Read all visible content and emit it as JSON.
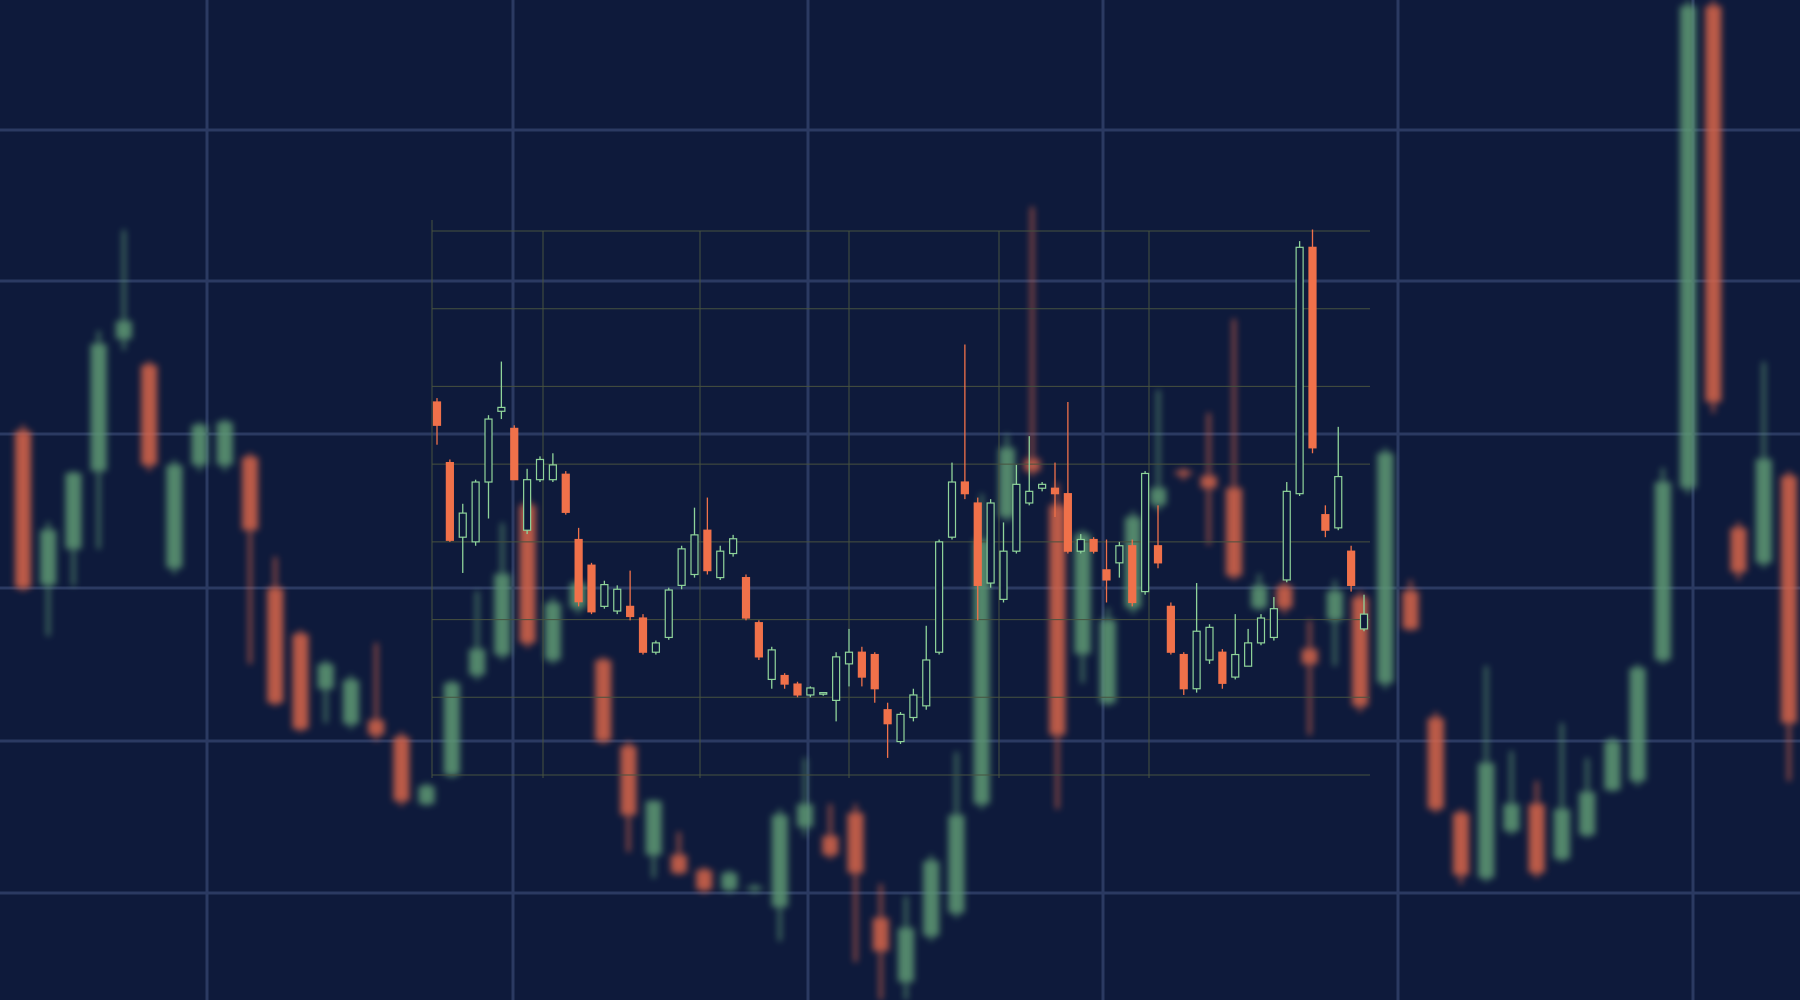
{
  "chart_data": [
    {
      "type": "candlestick",
      "up_color": "#8fd49a",
      "down_color": "#f0714a",
      "ylim": [
        0,
        7.05
      ],
      "yticks": [
        0,
        1,
        2,
        3,
        4,
        5,
        6,
        7
      ],
      "grid": true,
      "open": [
        4.8,
        4.02,
        3.06,
        3.0,
        3.77,
        4.68,
        4.46,
        3.15,
        3.8,
        3.8,
        3.87,
        3.03,
        2.7,
        2.17,
        2.11,
        2.17,
        2.02,
        1.58,
        1.77,
        2.44,
        2.58,
        3.15,
        2.54,
        2.85,
        2.54,
        1.96,
        1.23,
        1.28,
        1.17,
        1.03,
        1.04,
        0.96,
        1.43,
        1.58,
        1.55,
        0.84,
        0.43,
        0.74,
        0.89,
        1.58,
        3.06,
        3.77,
        3.5,
        2.47,
        2.26,
        2.88,
        3.5,
        3.69,
        3.69,
        3.62,
        2.88,
        3.03,
        2.64,
        2.73,
        2.95,
        2.36,
        2.95,
        2.17,
        1.55,
        1.11,
        1.48,
        1.58,
        1.26,
        1.4,
        1.7,
        1.77,
        2.51,
        3.62,
        6.79,
        3.35,
        3.18,
        2.88,
        1.88
      ],
      "high": [
        4.85,
        4.06,
        3.49,
        3.8,
        4.63,
        5.32,
        4.5,
        3.94,
        4.1,
        4.14,
        3.91,
        3.18,
        2.73,
        2.5,
        2.44,
        2.63,
        2.07,
        1.73,
        2.41,
        2.95,
        3.44,
        3.57,
        2.95,
        3.09,
        2.58,
        1.99,
        1.65,
        1.31,
        1.2,
        1.14,
        1.06,
        1.58,
        1.88,
        1.65,
        1.58,
        0.93,
        0.81,
        1.11,
        1.92,
        3.03,
        4.02,
        5.54,
        3.57,
        3.55,
        3.25,
        3.99,
        4.36,
        3.77,
        4.02,
        4.8,
        3.1,
        3.06,
        3.03,
        3.0,
        3.03,
        3.91,
        3.47,
        2.22,
        1.58,
        2.47,
        1.94,
        1.62,
        2.07,
        1.88,
        2.07,
        2.29,
        3.77,
        6.87,
        7.02,
        3.47,
        4.48,
        2.95,
        2.32
      ],
      "low": [
        4.25,
        3.0,
        2.6,
        2.95,
        3.3,
        4.58,
        3.8,
        3.1,
        3.77,
        3.77,
        3.35,
        2.17,
        2.07,
        2.14,
        2.07,
        1.99,
        1.55,
        1.55,
        1.74,
        2.39,
        2.54,
        2.58,
        2.51,
        2.81,
        1.99,
        1.48,
        1.11,
        1.11,
        1.0,
        1.0,
        1.02,
        0.69,
        1.14,
        1.14,
        0.93,
        0.22,
        0.4,
        0.69,
        0.84,
        1.55,
        3.03,
        3.55,
        1.99,
        2.41,
        2.22,
        2.85,
        3.47,
        3.65,
        3.32,
        2.85,
        2.85,
        2.85,
        2.22,
        2.54,
        2.17,
        2.32,
        2.66,
        1.55,
        1.03,
        1.06,
        1.43,
        1.11,
        1.23,
        1.4,
        1.67,
        1.73,
        2.48,
        3.59,
        4.14,
        3.06,
        3.15,
        2.36,
        1.85
      ],
      "close": [
        4.5,
        3.02,
        3.37,
        3.77,
        4.58,
        4.73,
        3.8,
        3.8,
        4.06,
        3.99,
        3.38,
        2.23,
        2.1,
        2.45,
        2.39,
        2.04,
        1.58,
        1.7,
        2.38,
        2.91,
        3.09,
        2.63,
        2.88,
        3.04,
        2.02,
        1.52,
        1.61,
        1.17,
        1.03,
        1.12,
        1.06,
        1.52,
        1.58,
        1.26,
        1.11,
        0.66,
        0.78,
        1.03,
        1.48,
        3.0,
        3.77,
        3.62,
        2.44,
        3.5,
        2.88,
        3.74,
        3.65,
        3.74,
        3.62,
        2.88,
        3.03,
        2.88,
        2.51,
        2.95,
        2.22,
        3.88,
        2.73,
        1.58,
        1.11,
        1.85,
        1.9,
        1.18,
        1.55,
        1.7,
        2.02,
        2.14,
        3.65,
        6.79,
        4.21,
        3.15,
        3.84,
        2.44,
        2.07
      ]
    },
    {
      "type": "candlestick",
      "up_color": "#5f9a74",
      "down_color": "#d9664a",
      "ylim": [
        0,
        10
      ],
      "grid": false,
      "open": [
        5.69,
        4.15,
        4.51,
        5.29,
        6.61,
        6.35,
        4.32,
        5.35,
        5.35,
        5.43,
        4.12,
        3.66,
        3.11,
        2.76,
        2.8,
        2.63,
        1.96,
        2.25,
        3.25,
        3.45,
        4.95,
        3.4,
        3.92,
        3.4,
        2.54,
        1.45,
        1.45,
        1.3,
        1.1,
        1.1,
        0.93,
        1.73,
        1.64,
        1.87,
        0.82,
        0.18,
        0.64,
        0.87,
        1.96,
        4.83,
        5.41,
        4.95,
        3.46,
        2.97,
        3.92,
        4.95,
        5.29,
        5.24,
        5.12,
        3.92,
        4.14,
        3.51,
        3.8,
        4.03,
        3.17,
        4.09,
        2.82,
        1.87,
        1.22,
        1.69,
        1.96,
        1.41,
        1.65,
        2.1,
        2.19,
        3.4,
        5.12,
        9.94,
        4.72,
        4.37,
        5.24
      ],
      "high": [
        5.75,
        4.78,
        5.29,
        6.69,
        7.7,
        6.39,
        5.4,
        5.78,
        5.81,
        5.47,
        4.43,
        3.7,
        3.4,
        3.25,
        3.57,
        2.68,
        2.17,
        3.2,
        4.09,
        4.77,
        5.01,
        4.03,
        4.2,
        3.43,
        2.59,
        2.0,
        1.68,
        1.33,
        1.3,
        1.16,
        1.91,
        2.42,
        1.96,
        1.96,
        1.16,
        1.04,
        1.45,
        2.48,
        5.06,
        5.66,
        7.93,
        5.17,
        4.7,
        3.92,
        4.89,
        6.1,
        5.32,
        5.87,
        6.81,
        4.26,
        4.2,
        3.8,
        4.2,
        4.09,
        5.52,
        4.2,
        2.88,
        1.91,
        3.34,
        2.49,
        2.19,
        2.77,
        2.42,
        2.63,
        3.36,
        5.32,
        10,
        10,
        4.78,
        6.38,
        5.29
      ],
      "low": [
        4.09,
        3.64,
        4.14,
        4.51,
        6.5,
        5.29,
        4.26,
        5.29,
        5.29,
        3.36,
        2.94,
        2.68,
        2.77,
        2.71,
        2.59,
        1.94,
        1.94,
        2.22,
        3.2,
        3.4,
        3.52,
        3.36,
        3.86,
        2.56,
        1.48,
        1.22,
        1.25,
        1.07,
        1.07,
        1.07,
        0.59,
        1.64,
        1.41,
        0.38,
        0,
        0,
        0.59,
        0.82,
        1.91,
        4.78,
        5.24,
        1.91,
        3.17,
        2.94,
        3.86,
        4.89,
        5.2,
        4.55,
        4.2,
        3.89,
        3.86,
        2.65,
        3.34,
        2.88,
        3.11,
        3.69,
        1.87,
        1.16,
        1.18,
        1.65,
        1.22,
        1.38,
        1.62,
        2.08,
        2.14,
        3.36,
        5.06,
        5.87,
        4.2,
        4.32,
        2.19
      ],
      "close": [
        4.12,
        4.7,
        5.27,
        6.56,
        6.79,
        5.35,
        5.35,
        5.75,
        5.78,
        4.7,
        2.97,
        2.71,
        3.36,
        3.2,
        2.65,
        1.99,
        2.14,
        3.17,
        3.51,
        4.26,
        3.57,
        3.97,
        4.17,
        2.59,
        1.85,
        1.99,
        1.27,
        1.1,
        1.27,
        1.13,
        1.85,
        1.96,
        1.45,
        1.27,
        0.49,
        0.72,
        1.39,
        1.85,
        4.6,
        5.52,
        5.29,
        2.65,
        4.66,
        3.8,
        4.83,
        5.12,
        5.25,
        5.12,
        4.24,
        4.14,
        3.92,
        3.36,
        4.09,
        2.94,
        5.47,
        3.71,
        1.91,
        1.25,
        2.37,
        1.96,
        1.27,
        1.91,
        2.08,
        2.59,
        3.32,
        5.18,
        9.94,
        5.98,
        4.28,
        5.41,
        2.77
      ]
    }
  ]
}
